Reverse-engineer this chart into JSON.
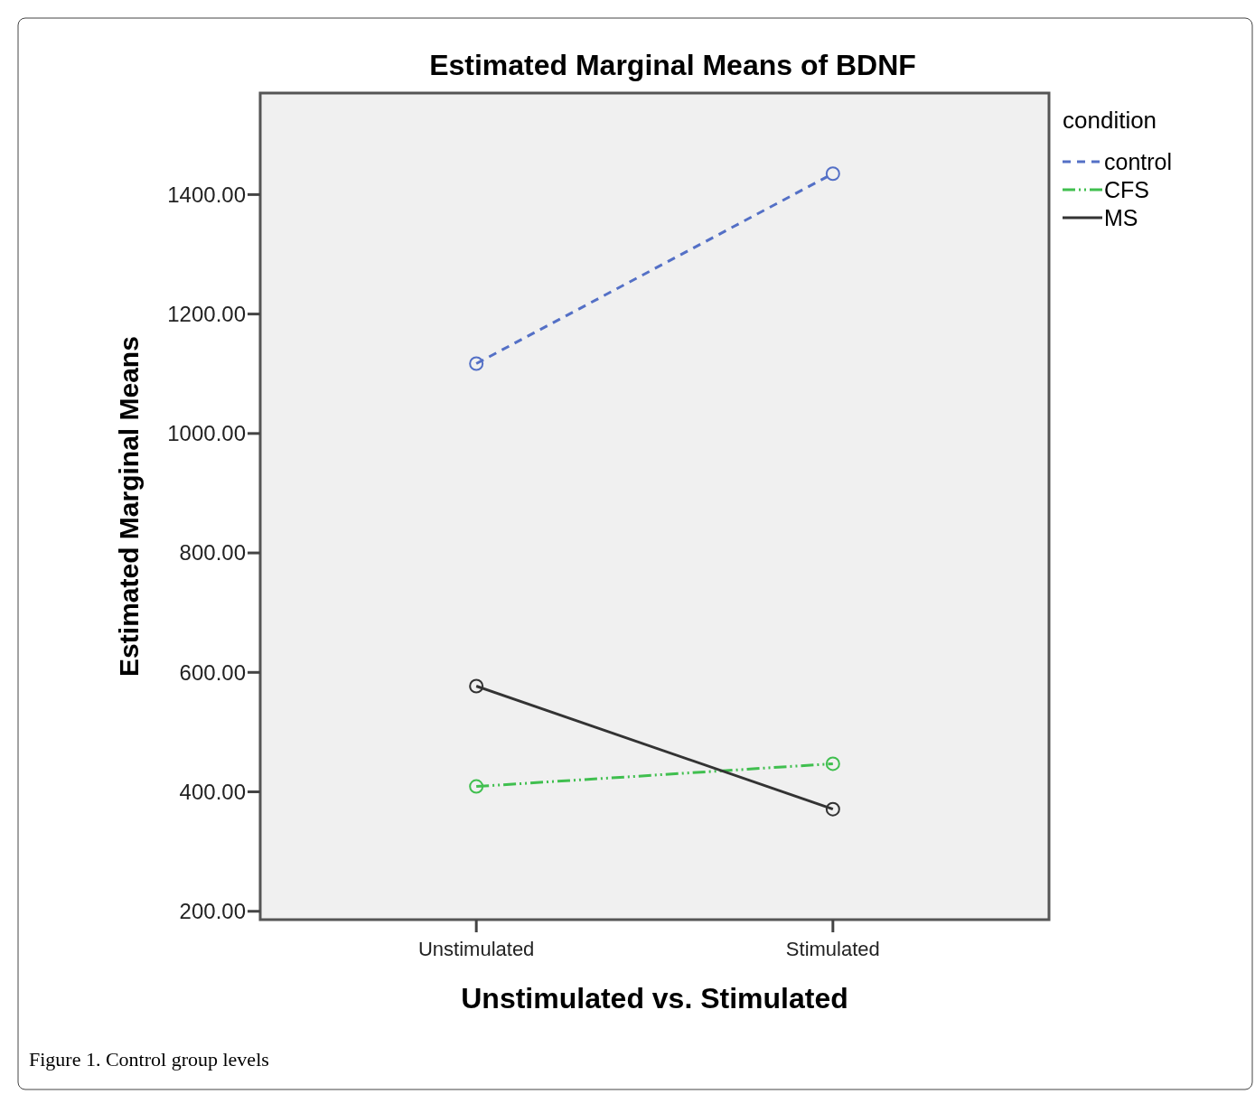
{
  "chart_data": {
    "type": "line",
    "title": "Estimated Marginal Means of BDNF",
    "xlabel": "Unstimulated vs. Stimulated",
    "ylabel": "Estimated Marginal Means",
    "legend_title": "condition",
    "legend": "top right",
    "marker": "circle",
    "categories": [
      "Unstimulated",
      "Stimulated"
    ],
    "series": [
      {
        "name": "control",
        "color": "#5470c6",
        "values": [
          1117,
          1435
        ],
        "line_style": "dashed"
      },
      {
        "name": "CFS",
        "color": "#40bf4f",
        "values": [
          409,
          447
        ],
        "line_style": "dotted"
      },
      {
        "name": "MS",
        "color": "#333333",
        "values": [
          577,
          371
        ],
        "line_style": "solid"
      }
    ],
    "ylim": [
      186,
      1570
    ],
    "yticks": [
      {
        "value": 200,
        "label": "200.00"
      },
      {
        "value": 400,
        "label": "400.00"
      },
      {
        "value": 600,
        "label": "600.00"
      },
      {
        "value": 800,
        "label": "800.00"
      },
      {
        "value": 1000,
        "label": "1000.00"
      },
      {
        "value": 1200,
        "label": "1200.00"
      },
      {
        "value": 1400,
        "label": "1400.00"
      }
    ],
    "annotations": [
      "Figure 1. Control group levels"
    ]
  }
}
